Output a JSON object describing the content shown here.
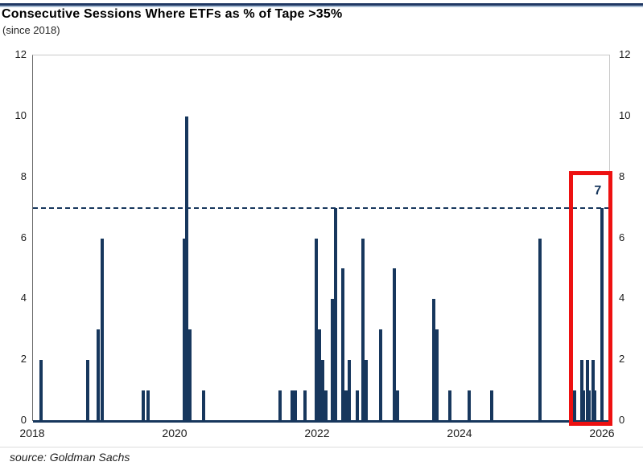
{
  "header": {
    "title": "Consecutive Sessions Where ETFs as % of Tape >35%",
    "subtitle": "(since 2018)"
  },
  "footer": {
    "source": "source: Goldman Sachs"
  },
  "colors": {
    "bar": "#17375d",
    "threshold_line": "#17375d",
    "highlight_box": "#ed1111",
    "annotation_text": "#17375d",
    "axis_line": "#17375d",
    "plot_border": "#c9c9c9",
    "top_rule_dark": "#203864",
    "top_rule_light": "#a8bdd4"
  },
  "chart_data": {
    "type": "bar",
    "title": "Consecutive Sessions Where ETFs as % of Tape >35%",
    "subtitle": "(since 2018)",
    "source": "source: Goldman Sachs",
    "xlabel": "",
    "ylabel": "",
    "grid": false,
    "legend": false,
    "x_axis": {
      "min": 2018,
      "max": 2026.09,
      "tick_values": [
        2018,
        2020,
        2022,
        2024,
        2026
      ],
      "tick_labels": [
        "2018",
        "2020",
        "2022",
        "2024",
        "2026"
      ]
    },
    "y_axis": {
      "min": 0,
      "max": 12,
      "ticks": [
        0,
        2,
        4,
        6,
        8,
        10,
        12
      ],
      "sides": "both"
    },
    "threshold": {
      "value": 7,
      "style": "dashed"
    },
    "annotation": {
      "text": "7",
      "x": 2025.93,
      "y": 7.55
    },
    "highlight_box": {
      "x_start": 2025.52,
      "x_end": 2026.13,
      "y_bottom": -0.15,
      "y_top": 8.2
    },
    "bars": [
      {
        "x": 2018.11,
        "value": 2
      },
      {
        "x": 2018.77,
        "value": 2
      },
      {
        "x": 2018.92,
        "value": 3
      },
      {
        "x": 2018.97,
        "value": 6
      },
      {
        "x": 2019.55,
        "value": 1
      },
      {
        "x": 2019.61,
        "value": 1
      },
      {
        "x": 2020.12,
        "value": 6
      },
      {
        "x": 2020.16,
        "value": 10
      },
      {
        "x": 2020.2,
        "value": 3
      },
      {
        "x": 2020.4,
        "value": 1
      },
      {
        "x": 2021.47,
        "value": 1
      },
      {
        "x": 2021.64,
        "value": 1
      },
      {
        "x": 2021.68,
        "value": 1
      },
      {
        "x": 2021.82,
        "value": 1
      },
      {
        "x": 2021.98,
        "value": 6
      },
      {
        "x": 2022.02,
        "value": 3
      },
      {
        "x": 2022.07,
        "value": 2
      },
      {
        "x": 2022.11,
        "value": 1
      },
      {
        "x": 2022.2,
        "value": 4
      },
      {
        "x": 2022.25,
        "value": 7
      },
      {
        "x": 2022.35,
        "value": 5
      },
      {
        "x": 2022.4,
        "value": 1
      },
      {
        "x": 2022.44,
        "value": 2
      },
      {
        "x": 2022.55,
        "value": 1
      },
      {
        "x": 2022.63,
        "value": 6
      },
      {
        "x": 2022.68,
        "value": 2
      },
      {
        "x": 2022.88,
        "value": 3
      },
      {
        "x": 2023.07,
        "value": 5
      },
      {
        "x": 2023.12,
        "value": 1
      },
      {
        "x": 2023.63,
        "value": 4
      },
      {
        "x": 2023.67,
        "value": 3
      },
      {
        "x": 2023.85,
        "value": 1
      },
      {
        "x": 2024.12,
        "value": 1
      },
      {
        "x": 2024.44,
        "value": 1
      },
      {
        "x": 2025.12,
        "value": 6
      },
      {
        "x": 2025.6,
        "value": 1
      },
      {
        "x": 2025.7,
        "value": 2
      },
      {
        "x": 2025.73,
        "value": 1
      },
      {
        "x": 2025.78,
        "value": 2
      },
      {
        "x": 2025.81,
        "value": 1
      },
      {
        "x": 2025.86,
        "value": 2
      },
      {
        "x": 2025.89,
        "value": 1
      },
      {
        "x": 2025.99,
        "value": 7
      }
    ]
  }
}
